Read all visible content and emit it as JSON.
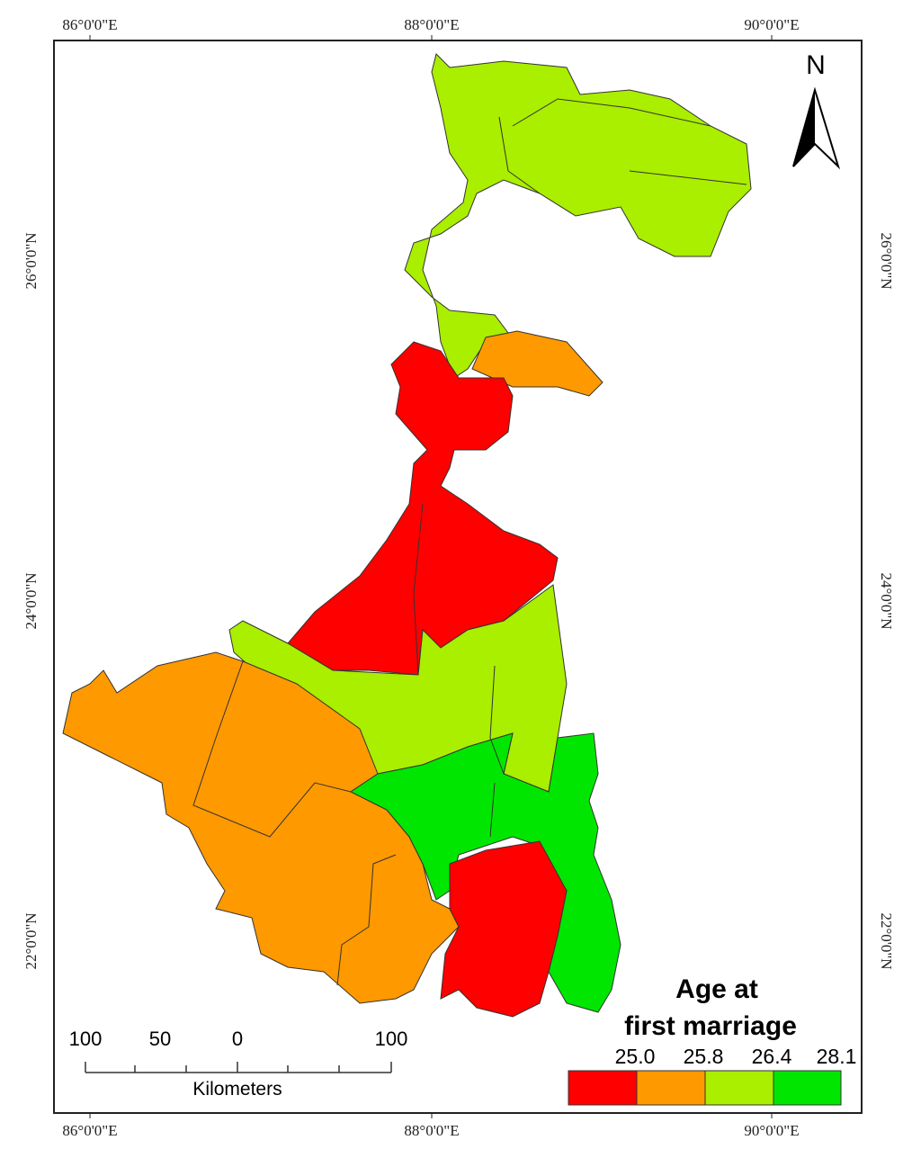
{
  "map": {
    "north": "N",
    "longitude_labels": [
      "86°0'0\"E",
      "88°0'0\"E",
      "90°0'0\"E"
    ],
    "latitude_labels": [
      "26°0'0\"N",
      "24°0'0\"N",
      "22°0'0\"N"
    ],
    "legend": {
      "title": [
        "Age at",
        "first marriage"
      ],
      "breaks": [
        "25.0",
        "25.8",
        "26.4",
        "28.1"
      ],
      "colors": [
        "#ff0000",
        "#ff9900",
        "#aaee00",
        "#00e600"
      ]
    },
    "scale_bar": {
      "labels": [
        "100",
        "50",
        "0",
        "100"
      ],
      "unit": "Kilometers"
    }
  }
}
